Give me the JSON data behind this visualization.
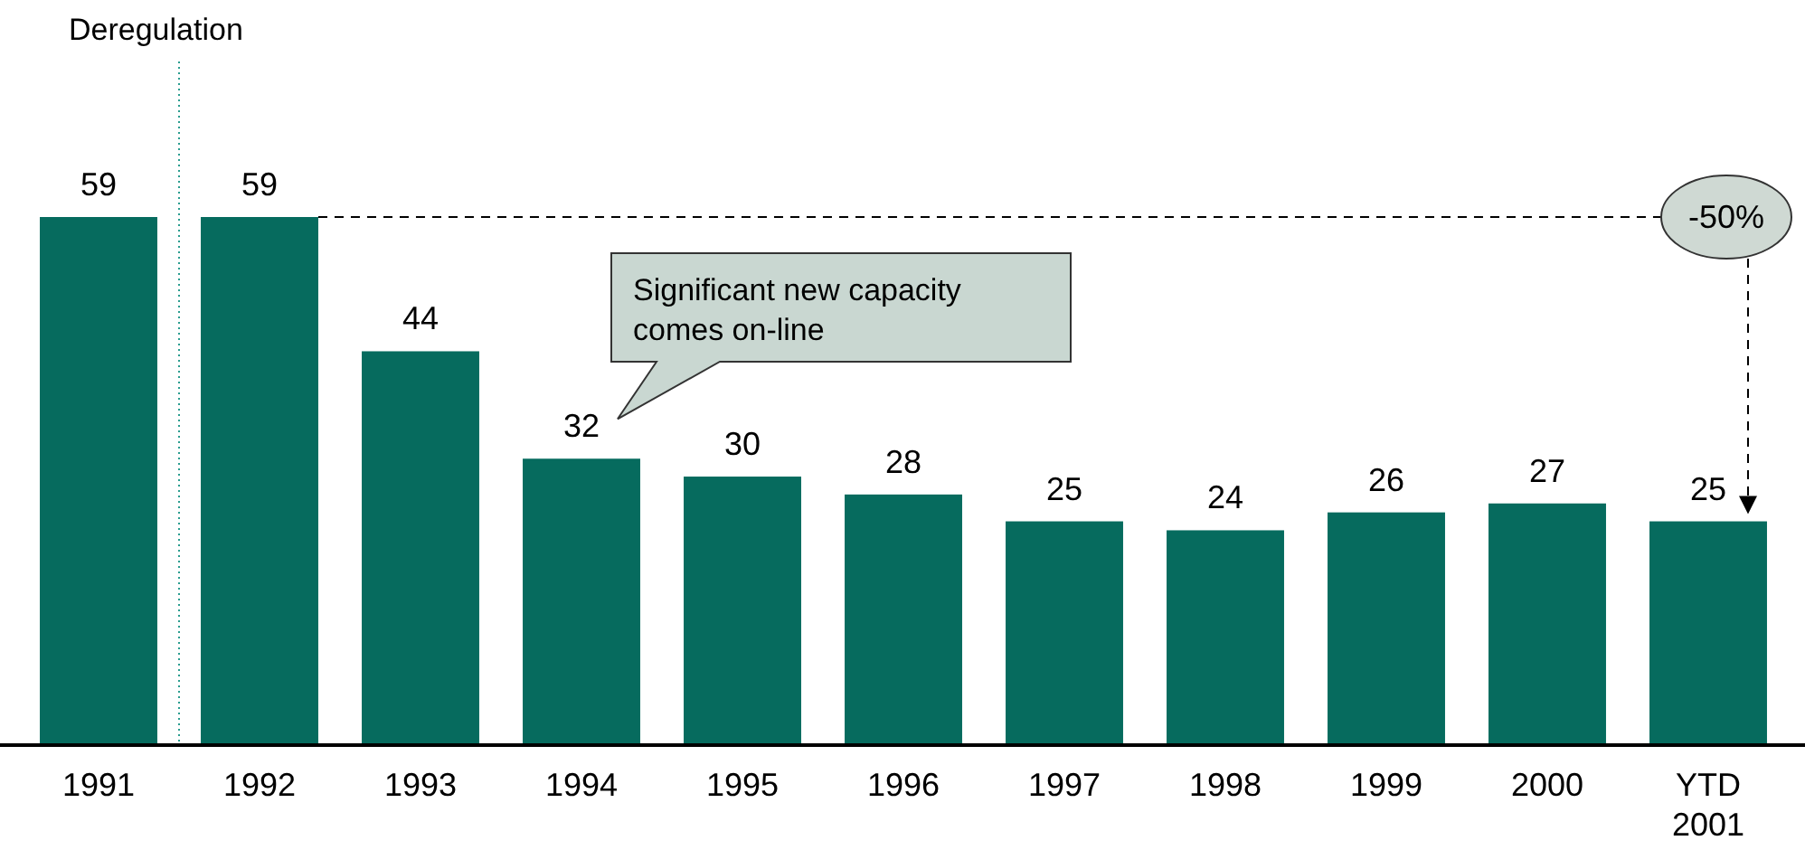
{
  "chart_data": {
    "type": "bar",
    "categories": [
      "1991",
      "1992",
      "1993",
      "1994",
      "1995",
      "1996",
      "1997",
      "1998",
      "1999",
      "2000",
      "YTD 2001"
    ],
    "values": [
      59,
      59,
      44,
      32,
      30,
      28,
      25,
      24,
      26,
      27,
      25
    ],
    "color": "#066b5e",
    "data_labels": true,
    "annotations": [
      "Deregulation",
      "Significant new capacity comes on-line",
      "-50%"
    ]
  }
}
